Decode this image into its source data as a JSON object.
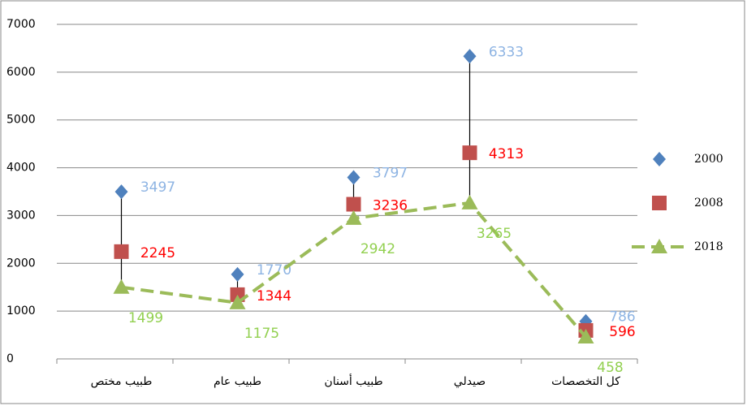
{
  "chart_data": {
    "type": "line",
    "categories": [
      "طبيب مختص",
      "طبيب عام",
      "طبيب أسنان",
      "صيدلي",
      "كل التخصصات"
    ],
    "series": [
      {
        "name": "2000",
        "color": "#4f81bd",
        "label_color": "#8eb4e3",
        "marker": "diamond",
        "values": [
          3497,
          1770,
          3797,
          6333,
          786
        ]
      },
      {
        "name": "2008",
        "color": "#c0504d",
        "label_color": "#ff0000",
        "marker": "square",
        "values": [
          2245,
          1344,
          3236,
          4313,
          596
        ]
      },
      {
        "name": "2018",
        "color": "#9bbb59",
        "label_color": "#92d050",
        "marker": "triangle",
        "line": "dashed",
        "values": [
          1499,
          1175,
          2942,
          3265,
          458
        ]
      }
    ],
    "ylim": [
      0,
      7000
    ],
    "yticks": [
      0,
      1000,
      2000,
      3000,
      4000,
      5000,
      6000,
      7000
    ],
    "grid": true,
    "legend": "right",
    "high_low_lines": true
  }
}
